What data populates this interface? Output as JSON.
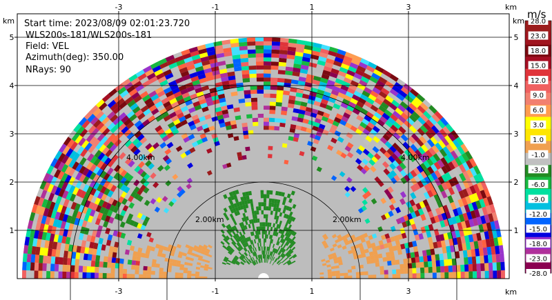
{
  "info": {
    "start_time": "Start time: 2023/08/09 02:01:23.720",
    "site": "WLS200s-181/WLS200s-181",
    "field": "Field: VEL",
    "azimuth": "Azimuth(deg): 350.00",
    "nrays": "NRays: 90"
  },
  "axes": {
    "x_unit": "km",
    "y_unit": "km",
    "x_ticks": [
      "-3",
      "-1",
      "1",
      "3"
    ],
    "y_ticks": [
      "1",
      "2",
      "3",
      "4",
      "5"
    ]
  },
  "range_rings": {
    "labels": [
      "2.00km",
      "2.00km",
      "4.00km",
      "4.00km"
    ]
  },
  "colorbar": {
    "unit": "m/s",
    "labels": [
      "28.0",
      "23.0",
      "18.0",
      "15.0",
      "12.0",
      "9.0",
      "6.0",
      "3.0",
      "1.0",
      "-1.0",
      "-3.0",
      "-6.0",
      "-9.0",
      "-12.0",
      "-15.0",
      "-18.0",
      "-23.0",
      "-28.0"
    ],
    "colors": [
      "#9b1c1c",
      "#a0141e",
      "#7a0a10",
      "#a50f23",
      "#e0343a",
      "#f06060",
      "#f28070",
      "#ff9c50",
      "#ffff00",
      "#ffe600",
      "#f0a050",
      "#c0c0c0",
      "#228b22",
      "#18b840",
      "#00e0a0",
      "#00c0e0",
      "#0064ff",
      "#0000e0",
      "#9933cc",
      "#b0309a",
      "#8b0050"
    ]
  },
  "chart_data": {
    "type": "heatmap",
    "field": "VEL",
    "azimuth_deg": 350.0,
    "nrays": 90,
    "x_ticks": [
      -3,
      -1,
      1,
      3
    ],
    "y_ticks": [
      1,
      2,
      3,
      4,
      5
    ],
    "xlim": [
      -4.9,
      5.0
    ],
    "ylim": [
      0.0,
      5.75
    ],
    "range_rings_km": [
      2.0,
      4.0
    ],
    "max_range_km": 5.0,
    "colorbar_range": [
      -28.0,
      28.0
    ],
    "colorbar_ticks": [
      28.0,
      23.0,
      18.0,
      15.0,
      12.0,
      9.0,
      6.0,
      3.0,
      1.0,
      -1.0,
      -3.0,
      -6.0,
      -9.0,
      -12.0,
      -15.0,
      -18.0,
      -23.0,
      -28.0
    ]
  }
}
